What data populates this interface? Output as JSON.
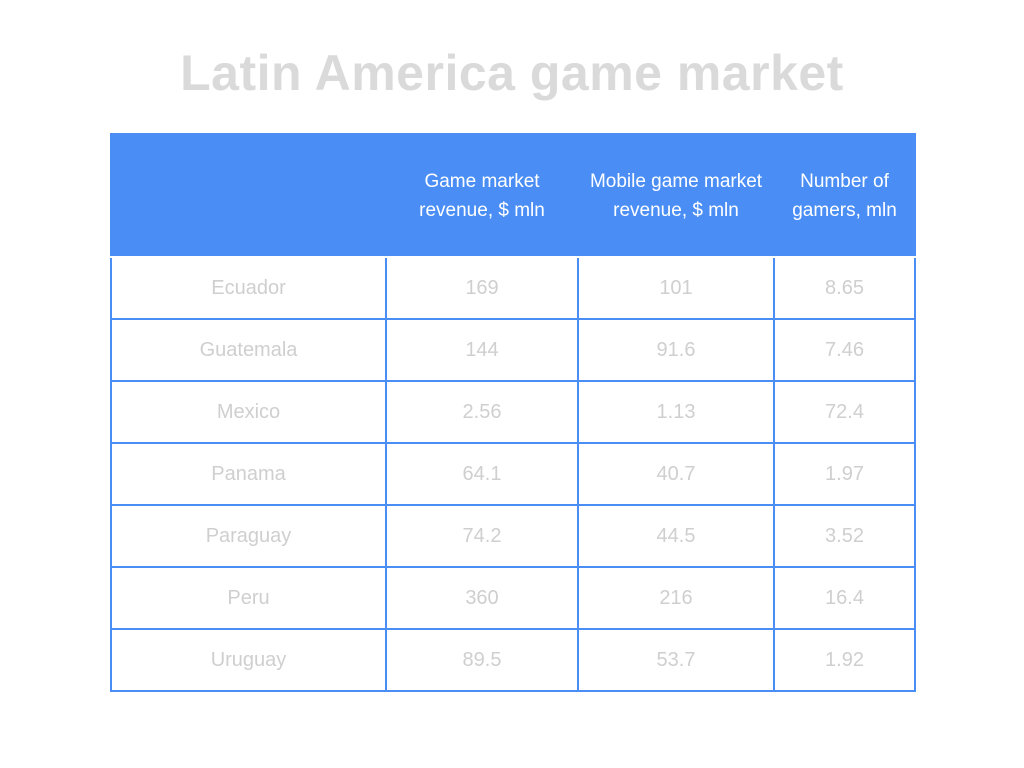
{
  "title": "Latin America game market",
  "table": {
    "headers": [
      "",
      "Game market revenue, $ mln",
      "Mobile game market revenue, $ mln",
      "Number of gamers, mln"
    ],
    "rows": [
      [
        "Ecuador",
        "169",
        "101",
        "8.65"
      ],
      [
        "Guatemala",
        "144",
        "91.6",
        "7.46"
      ],
      [
        "Mexico",
        "2.56",
        "1.13",
        "72.4"
      ],
      [
        "Panama",
        "64.1",
        "40.7",
        "1.97"
      ],
      [
        "Paraguay",
        "74.2",
        "44.5",
        "3.52"
      ],
      [
        "Peru",
        "360",
        "216",
        "16.4"
      ],
      [
        "Uruguay",
        "89.5",
        "53.7",
        "1.92"
      ]
    ]
  },
  "colors": {
    "header_bg": "#4a8ef5",
    "title_text": "#dadada",
    "cell_text": "#cfcfcf"
  }
}
